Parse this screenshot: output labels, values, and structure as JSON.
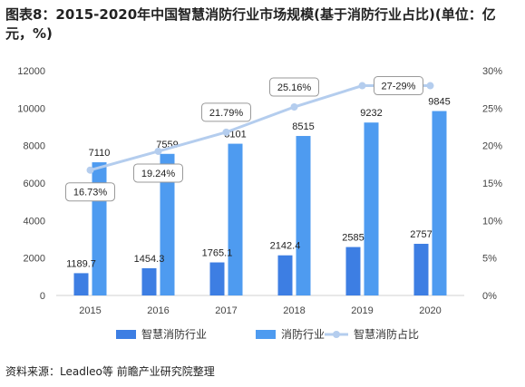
{
  "title": "图表8：2015-2020年中国智慧消防行业市场规模(基于消防行业占比)(单位：亿元，%)",
  "source": "资料来源：Leadleo等 前瞻产业研究院整理",
  "chart_data": {
    "type": "bar",
    "categories": [
      "2015",
      "2016",
      "2017",
      "2018",
      "2019",
      "2020"
    ],
    "series": [
      {
        "name": "智慧消防行业",
        "type": "bar",
        "axis": "left",
        "color": "#3d7ee3",
        "values": [
          1189.7,
          1454.3,
          1765.1,
          2142.4,
          2585,
          2757
        ],
        "labels": [
          "1189.7",
          "1454.3",
          "1765.1",
          "2142.4",
          "2585",
          "2757"
        ]
      },
      {
        "name": "消防行业",
        "type": "bar",
        "axis": "left",
        "color": "#4e9bf0",
        "values": [
          7110,
          7559,
          8101,
          8515,
          9232,
          9845
        ],
        "labels": [
          "7110",
          "7559",
          "8101",
          "8515",
          "9232",
          "9845"
        ]
      },
      {
        "name": "智慧消防占比",
        "type": "line",
        "axis": "right",
        "color": "#b4cdee",
        "values": [
          16.73,
          19.24,
          21.79,
          25.16,
          28,
          28
        ],
        "labels": [
          "16.73%",
          "19.24%",
          "21.79%",
          "25.16%",
          "",
          "27-29%"
        ]
      }
    ],
    "ylim_left": [
      0,
      12000
    ],
    "yticks_left": [
      "0",
      "2000",
      "4000",
      "6000",
      "8000",
      "10000",
      "12000"
    ],
    "ylim_right": [
      0,
      30
    ],
    "yticks_right": [
      "0%",
      "5%",
      "10%",
      "15%",
      "20%",
      "25%",
      "30%"
    ],
    "legend_position": "bottom",
    "grid": false
  }
}
